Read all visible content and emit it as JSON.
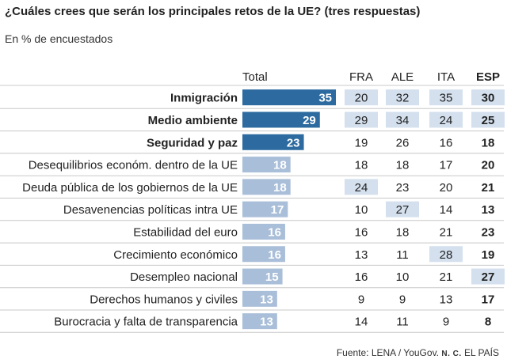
{
  "header": {
    "title": "¿Cuáles crees que serán los principales retos de la UE? (tres respuestas)",
    "subtitle": "En % de encuestados"
  },
  "footer": {
    "source_prefix": "Fuente: LENA / YouGov. ",
    "source_initials": "N. C.",
    "source_suffix": " EL PAÍS"
  },
  "colors": {
    "bar_dark": "#2c6a9f",
    "bar_light": "#a9bed8",
    "highlight_cell": "#d4e0ee",
    "separator": "#c8c8c8",
    "text": "#222222"
  },
  "chart_data": {
    "type": "table",
    "columns": [
      "Total",
      "FRA",
      "ALE",
      "ITA",
      "ESP"
    ],
    "rows": [
      {
        "label": "Inmigración",
        "bold": true,
        "total": 35,
        "fra": 20,
        "ale": 32,
        "ita": 35,
        "esp": 30,
        "hl": [
          "fra",
          "ale",
          "ita",
          "esp"
        ]
      },
      {
        "label": "Medio ambiente",
        "bold": true,
        "total": 29,
        "fra": 29,
        "ale": 34,
        "ita": 24,
        "esp": 25,
        "hl": [
          "fra",
          "ale",
          "ita",
          "esp"
        ]
      },
      {
        "label": "Seguridad y paz",
        "bold": true,
        "total": 23,
        "fra": 19,
        "ale": 26,
        "ita": 16,
        "esp": 18,
        "hl": []
      },
      {
        "label": "Desequilibrios económ. dentro de la UE",
        "bold": false,
        "total": 18,
        "fra": 18,
        "ale": 18,
        "ita": 17,
        "esp": 20,
        "hl": []
      },
      {
        "label": "Deuda pública de los gobiernos de la UE",
        "bold": false,
        "total": 18,
        "fra": 24,
        "ale": 23,
        "ita": 20,
        "esp": 21,
        "hl": [
          "fra"
        ]
      },
      {
        "label": "Desavenencias políticas intra UE",
        "bold": false,
        "total": 17,
        "fra": 10,
        "ale": 27,
        "ita": 14,
        "esp": 13,
        "hl": [
          "ale"
        ]
      },
      {
        "label": "Estabilidad del euro",
        "bold": false,
        "total": 16,
        "fra": 16,
        "ale": 18,
        "ita": 21,
        "esp": 23,
        "hl": []
      },
      {
        "label": "Crecimiento económico",
        "bold": false,
        "total": 16,
        "fra": 13,
        "ale": 11,
        "ita": 28,
        "esp": 19,
        "hl": [
          "ita"
        ]
      },
      {
        "label": "Desempleo nacional",
        "bold": false,
        "total": 15,
        "fra": 16,
        "ale": 10,
        "ita": 21,
        "esp": 27,
        "hl": [
          "esp"
        ]
      },
      {
        "label": "Derechos humanos y civiles",
        "bold": false,
        "total": 13,
        "fra": 9,
        "ale": 9,
        "ita": 13,
        "esp": 17,
        "hl": []
      },
      {
        "label": "Burocracia y falta de transparencia",
        "bold": false,
        "total": 13,
        "fra": 14,
        "ale": 11,
        "ita": 9,
        "esp": 8,
        "hl": []
      }
    ]
  }
}
